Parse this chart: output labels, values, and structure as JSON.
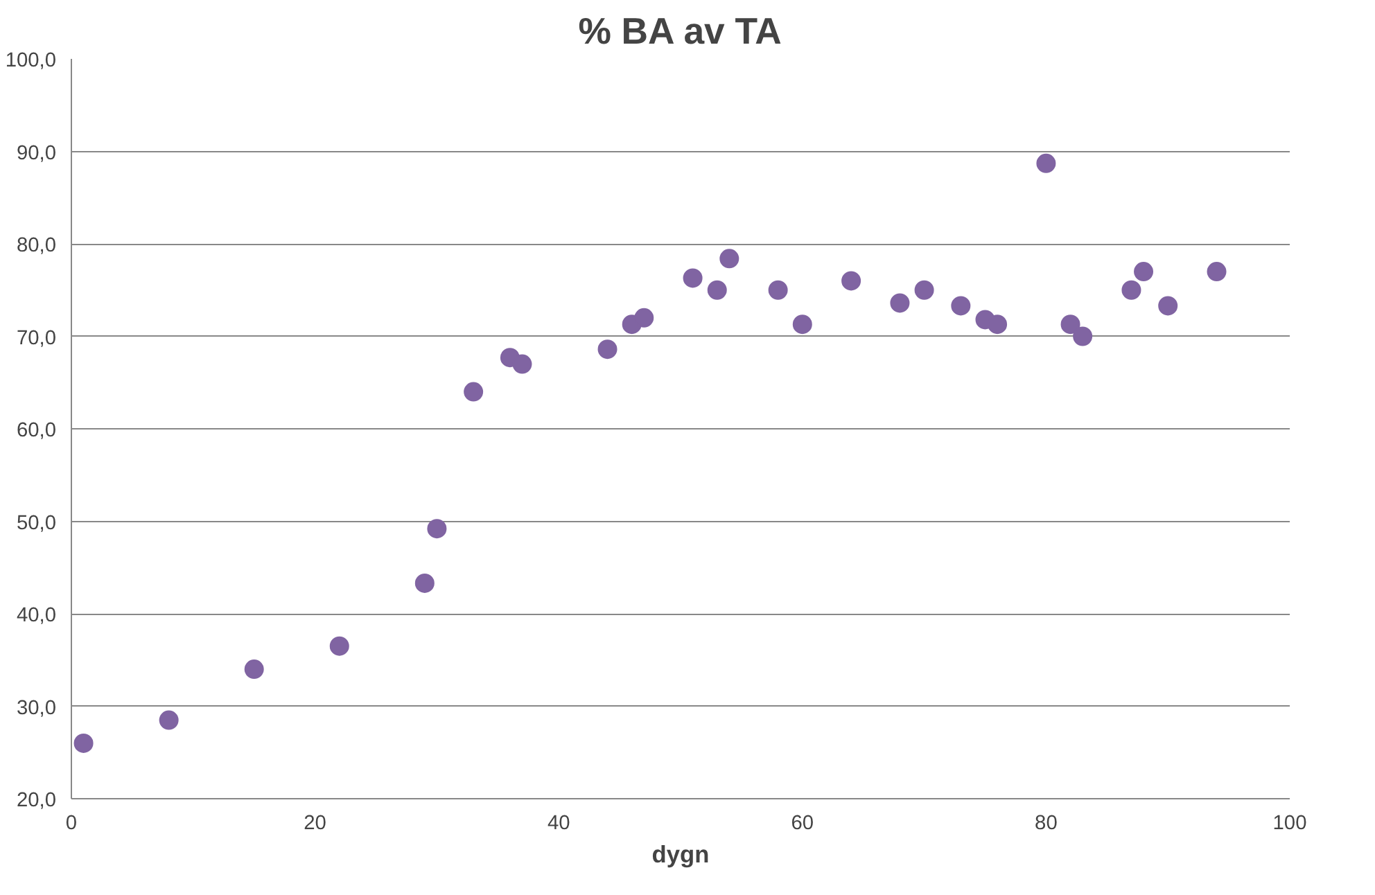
{
  "chart_data": {
    "type": "scatter",
    "title": "% BA av TA",
    "xlabel": "dygn",
    "x": [
      1,
      8,
      15,
      22,
      29,
      30,
      33,
      36,
      37,
      44,
      46,
      47,
      51,
      53,
      54,
      58,
      60,
      64,
      68,
      70,
      73,
      75,
      76,
      80,
      82,
      83,
      87,
      88,
      90,
      94
    ],
    "series": [
      {
        "color": "#8064a2",
        "values": [
          26,
          28.5,
          34,
          36.5,
          43.3,
          49.2,
          64,
          67.7,
          67,
          68.6,
          71.3,
          72,
          76.3,
          75,
          78.4,
          75,
          71.3,
          76,
          73.6,
          75,
          73.3,
          71.8,
          71.3,
          88.7,
          71.3,
          70,
          75,
          77,
          73.3,
          77
        ]
      }
    ],
    "xlim": [
      0,
      100
    ],
    "xticks": [
      0,
      20,
      40,
      60,
      80,
      100
    ],
    "ylim": [
      20,
      100
    ],
    "yticks": [
      {
        "value": 20,
        "label": "20,0"
      },
      {
        "value": 30,
        "label": "30,0"
      },
      {
        "value": 40,
        "label": "40,0"
      },
      {
        "value": 50,
        "label": "50,0"
      },
      {
        "value": 60,
        "label": "60,0"
      },
      {
        "value": 70,
        "label": "70,0"
      },
      {
        "value": 80,
        "label": "80,0"
      },
      {
        "value": 90,
        "label": "90,0"
      },
      {
        "value": 100,
        "label": "100,0"
      }
    ],
    "grid": "y",
    "marker": "circle"
  }
}
